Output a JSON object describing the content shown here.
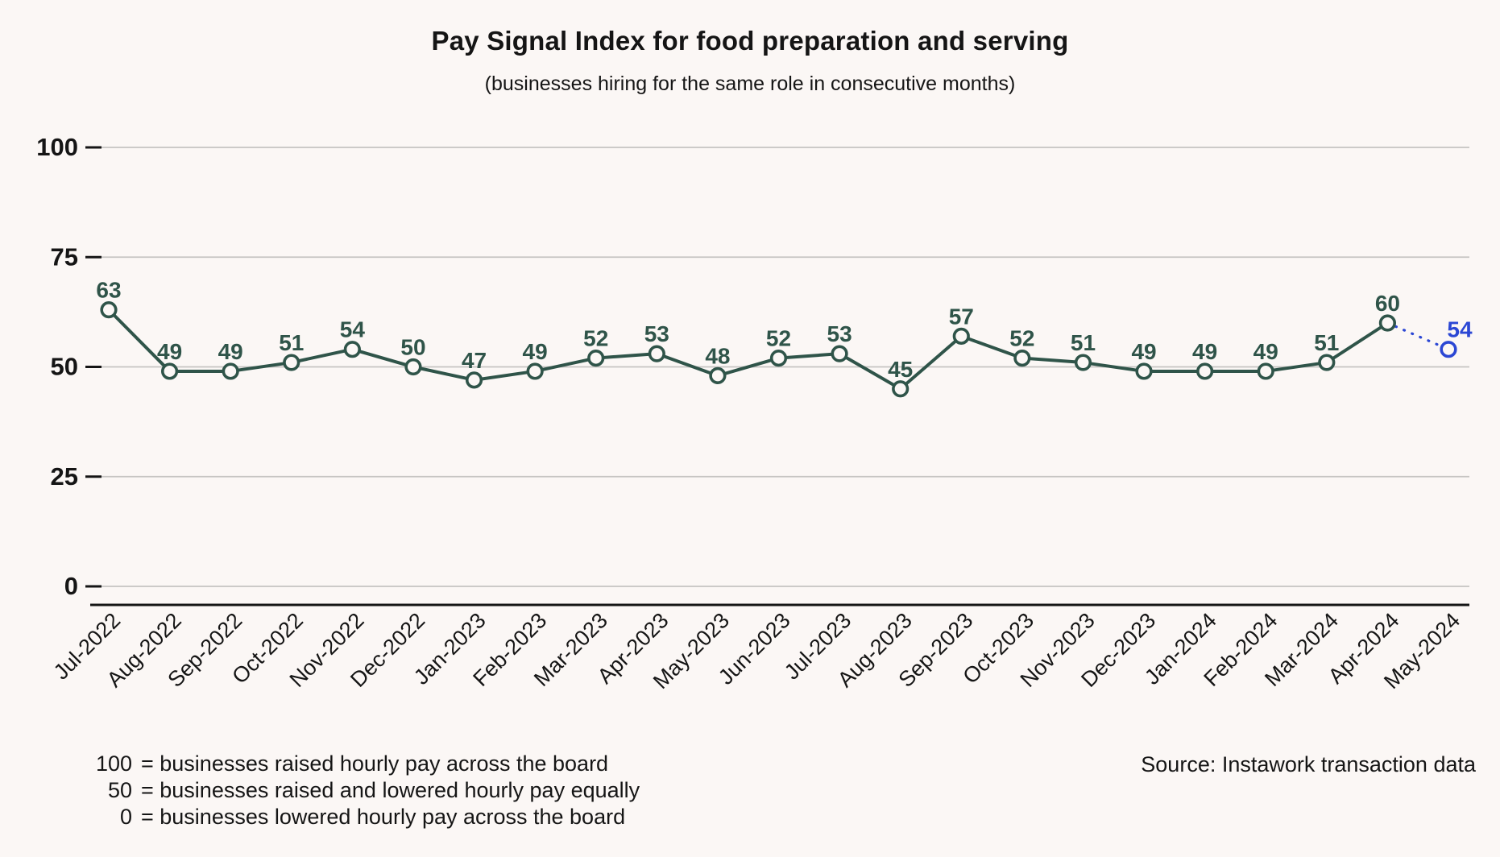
{
  "header": {
    "title": "Pay Signal Index for food preparation and serving",
    "subtitle": "(businesses hiring for the same role in consecutive months)"
  },
  "chart_data": {
    "type": "line",
    "title": "Pay Signal Index for food preparation and serving",
    "subtitle": "(businesses hiring for the same role in consecutive months)",
    "categories": [
      "Jul-2022",
      "Aug-2022",
      "Sep-2022",
      "Oct-2022",
      "Nov-2022",
      "Dec-2022",
      "Jan-2023",
      "Feb-2023",
      "Mar-2023",
      "Apr-2023",
      "May-2023",
      "Jun-2023",
      "Jul-2023",
      "Aug-2023",
      "Sep-2023",
      "Oct-2023",
      "Nov-2023",
      "Dec-2023",
      "Jan-2024",
      "Feb-2024",
      "Mar-2024",
      "Apr-2024",
      "May-2024"
    ],
    "series": [
      {
        "name": "Pay Signal Index",
        "values": [
          63,
          49,
          49,
          51,
          54,
          50,
          47,
          49,
          52,
          53,
          48,
          52,
          53,
          45,
          57,
          52,
          51,
          49,
          49,
          49,
          51,
          60,
          54
        ]
      }
    ],
    "provisional_last_point": true,
    "data_labels": "above-points",
    "marker": "open-circle",
    "ylim": [
      0,
      100
    ],
    "yticks": [
      0,
      25,
      50,
      75,
      100
    ],
    "grid": "horizontal",
    "legend": "none",
    "colors": {
      "line": "#2f5449",
      "provisional": "#2b47d4",
      "grid": "#c6c4c2",
      "axis": "#151515",
      "text": "#151515",
      "background": "#fbf7f5"
    }
  },
  "footer": {
    "notes": [
      {
        "value": "100",
        "text": "= businesses raised hourly pay across the board"
      },
      {
        "value": "50",
        "text": "= businesses raised and lowered hourly pay equally"
      },
      {
        "value": "0",
        "text": "= businesses lowered hourly pay across the board"
      }
    ],
    "source": "Source: Instawork transaction data"
  }
}
